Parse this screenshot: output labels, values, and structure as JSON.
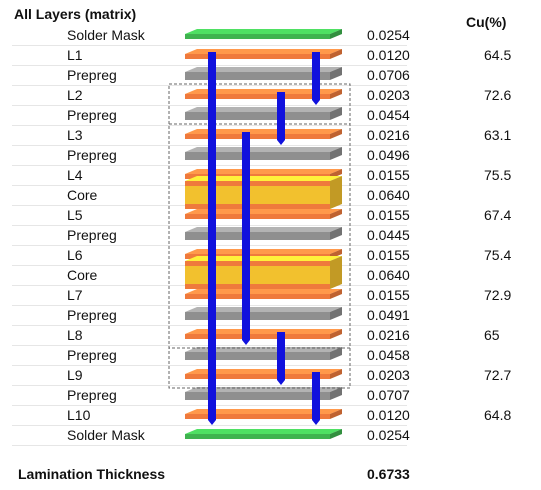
{
  "title": "All Layers (matrix)",
  "cu_header": "Cu(%)",
  "layers": [
    {
      "name": "Solder Mask",
      "thickness": "0.0254",
      "cu": "",
      "kind": "mask"
    },
    {
      "name": "L1",
      "thickness": "0.0120",
      "cu": "64.5",
      "kind": "copper"
    },
    {
      "name": "Prepreg",
      "thickness": "0.0706",
      "cu": "",
      "kind": "prepreg"
    },
    {
      "name": "L2",
      "thickness": "0.0203",
      "cu": "72.6",
      "kind": "copper"
    },
    {
      "name": "Prepreg",
      "thickness": "0.0454",
      "cu": "",
      "kind": "prepreg"
    },
    {
      "name": "L3",
      "thickness": "0.0216",
      "cu": "63.1",
      "kind": "copper"
    },
    {
      "name": "Prepreg",
      "thickness": "0.0496",
      "cu": "",
      "kind": "prepreg"
    },
    {
      "name": "L4",
      "thickness": "0.0155",
      "cu": "75.5",
      "kind": "copper"
    },
    {
      "name": "Core",
      "thickness": "0.0640",
      "cu": "",
      "kind": "core"
    },
    {
      "name": "L5",
      "thickness": "0.0155",
      "cu": "67.4",
      "kind": "copper"
    },
    {
      "name": "Prepreg",
      "thickness": "0.0445",
      "cu": "",
      "kind": "prepreg"
    },
    {
      "name": "L6",
      "thickness": "0.0155",
      "cu": "75.4",
      "kind": "copper"
    },
    {
      "name": "Core",
      "thickness": "0.0640",
      "cu": "",
      "kind": "core"
    },
    {
      "name": "L7",
      "thickness": "0.0155",
      "cu": "72.9",
      "kind": "copper"
    },
    {
      "name": "Prepreg",
      "thickness": "0.0491",
      "cu": "",
      "kind": "prepreg"
    },
    {
      "name": "L8",
      "thickness": "0.0216",
      "cu": "65",
      "kind": "copper"
    },
    {
      "name": "Prepreg",
      "thickness": "0.0458",
      "cu": "",
      "kind": "prepreg"
    },
    {
      "name": "L9",
      "thickness": "0.0203",
      "cu": "72.7",
      "kind": "copper"
    },
    {
      "name": "Prepreg",
      "thickness": "0.0707",
      "cu": "",
      "kind": "prepreg"
    },
    {
      "name": "L10",
      "thickness": "0.0120",
      "cu": "64.8",
      "kind": "copper"
    },
    {
      "name": "Solder Mask",
      "thickness": "0.0254",
      "cu": "",
      "kind": "mask"
    }
  ],
  "vias": [
    {
      "from": "L1",
      "to": "L10"
    },
    {
      "from": "L1",
      "to": "L2"
    },
    {
      "from": "L2",
      "to": "L3"
    },
    {
      "from": "L3",
      "to": "L8"
    },
    {
      "from": "L8",
      "to": "L9"
    },
    {
      "from": "L9",
      "to": "L10"
    }
  ],
  "footer": {
    "label": "Lamination Thickness",
    "value": "0.6733"
  },
  "colors": {
    "mask": "#3fb34f",
    "copper": "#ef7a3c",
    "prepreg": "#8f8f8f",
    "core": "#f2c12e",
    "via": "#1111dd",
    "frame": "#666666"
  }
}
